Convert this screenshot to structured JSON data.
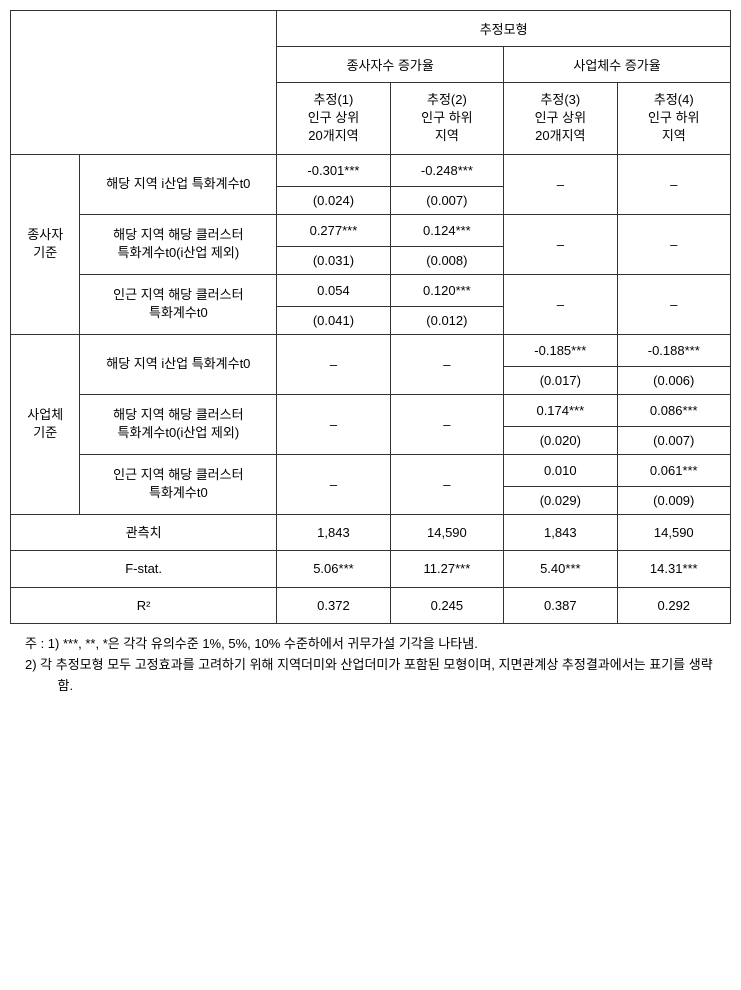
{
  "table": {
    "headers": {
      "main": "추정모형",
      "group1": "종사자수 증가율",
      "group2": "사업체수 증가율",
      "col1_line1": "추정(1)",
      "col1_line2": "인구 상위",
      "col1_line3": "20개지역",
      "col2_line1": "추정(2)",
      "col2_line2": "인구 하위",
      "col2_line3": "지역",
      "col3_line1": "추정(3)",
      "col3_line2": "인구 상위",
      "col3_line3": "20개지역",
      "col4_line1": "추정(4)",
      "col4_line2": "인구 하위",
      "col4_line3": "지역"
    },
    "rowGroups": {
      "group1_label_line1": "종사자",
      "group1_label_line2": "기준",
      "group2_label_line1": "사업체",
      "group2_label_line2": "기준"
    },
    "variables": {
      "var1": "해당 지역 i산업 특화계수t0",
      "var2_line1": "해당 지역 해당 클러스터",
      "var2_line2": "특화계수t0(i산업 제외)",
      "var3_line1": "인근 지역 해당 클러스터",
      "var3_line2": "특화계수t0",
      "var4": "해당 지역 i산업 특화계수t0",
      "var5_line1": "해당 지역 해당 클러스터",
      "var5_line2": "특화계수t0(i산업 제외)",
      "var6_line1": "인근 지역 해당 클러스터",
      "var6_line2": "특화계수t0"
    },
    "data": {
      "r1": {
        "c1": "-0.301***",
        "c2": "-0.248***",
        "c3": "–",
        "c4": "–"
      },
      "r1s": {
        "c1": "(0.024)",
        "c2": "(0.007)",
        "c3": "",
        "c4": ""
      },
      "r2": {
        "c1": "0.277***",
        "c2": "0.124***",
        "c3": "–",
        "c4": "–"
      },
      "r2s": {
        "c1": "(0.031)",
        "c2": "(0.008)",
        "c3": "",
        "c4": ""
      },
      "r3": {
        "c1": "0.054",
        "c2": "0.120***",
        "c3": "–",
        "c4": "–"
      },
      "r3s": {
        "c1": "(0.041)",
        "c2": "(0.012)",
        "c3": "",
        "c4": ""
      },
      "r4": {
        "c1": "–",
        "c2": "–",
        "c3": "-0.185***",
        "c4": "-0.188***"
      },
      "r4s": {
        "c1": "",
        "c2": "",
        "c3": "(0.017)",
        "c4": "(0.006)"
      },
      "r5": {
        "c1": "–",
        "c2": "–",
        "c3": "0.174***",
        "c4": "0.086***"
      },
      "r5s": {
        "c1": "",
        "c2": "",
        "c3": "(0.020)",
        "c4": "(0.007)"
      },
      "r6": {
        "c1": "–",
        "c2": "–",
        "c3": "0.010",
        "c4": "0.061***"
      },
      "r6s": {
        "c1": "",
        "c2": "",
        "c3": "(0.029)",
        "c4": "(0.009)"
      }
    },
    "summary": {
      "obs_label": "관측치",
      "obs": {
        "c1": "1,843",
        "c2": "14,590",
        "c3": "1,843",
        "c4": "14,590"
      },
      "fstat_label": "F-stat.",
      "fstat": {
        "c1": "5.06***",
        "c2": "11.27***",
        "c3": "5.40***",
        "c4": "14.31***"
      },
      "r2_label": "R²",
      "r2": {
        "c1": "0.372",
        "c2": "0.245",
        "c3": "0.387",
        "c4": "0.292"
      }
    }
  },
  "notes": {
    "note1": "주 : 1) ***, **, *은 각각 유의수준 1%, 5%, 10% 수준하에서 귀무가설 기각을 나타냄.",
    "note2": "2) 각 추정모형 모두 고정효과를 고려하기 위해 지역더미와 산업더미가 포함된 모형이며, 지면관계상 추정결과에서는 표기를 생략함."
  }
}
